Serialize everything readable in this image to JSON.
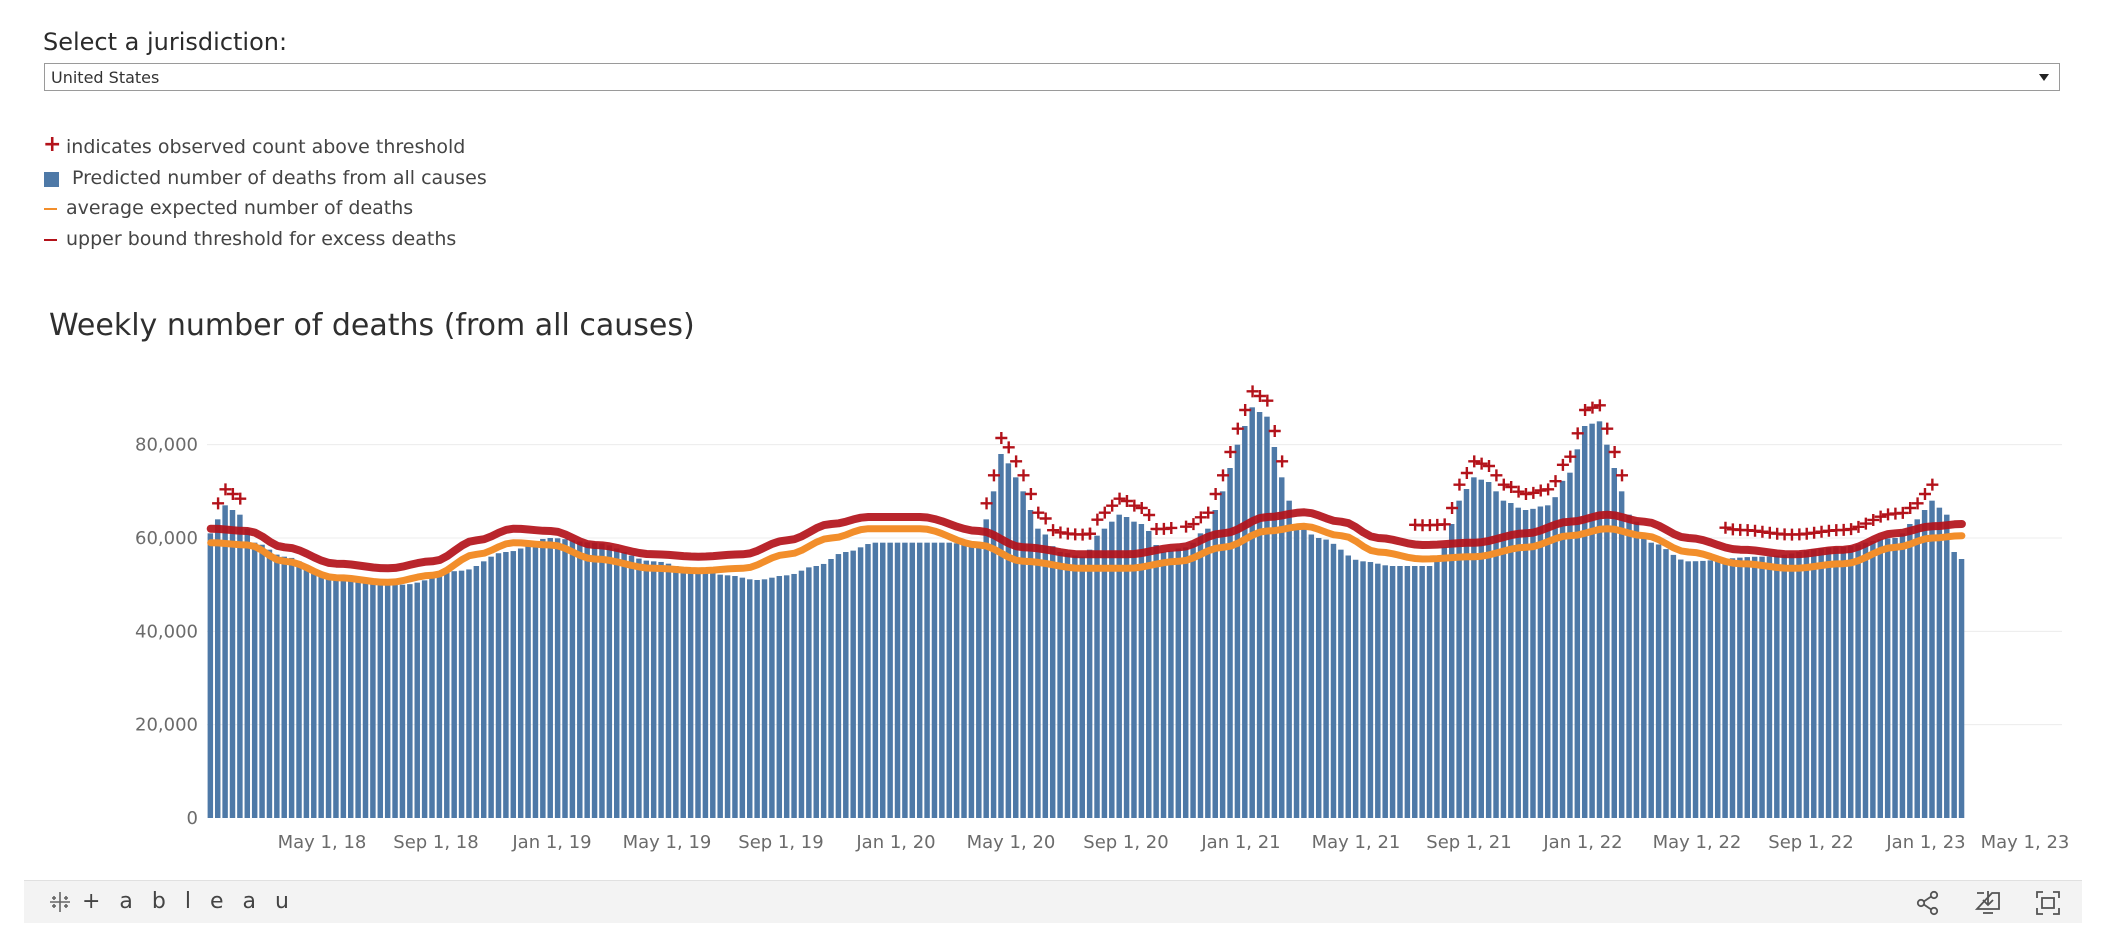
{
  "selector": {
    "label": "Select a jurisdiction:",
    "value": "United States"
  },
  "legend": [
    {
      "symbol": "plus",
      "color": "#b3121a",
      "text": "indicates observed count above threshold"
    },
    {
      "symbol": "square",
      "color": "#4e79a7",
      "text": "Predicted number of deaths from all causes"
    },
    {
      "symbol": "line",
      "color": "#f28e2b",
      "text": "average expected number of deaths"
    },
    {
      "symbol": "line",
      "color": "#b3121a",
      "text": "upper bound threshold for excess deaths"
    }
  ],
  "footer": {
    "brand": "+ a b l e a u",
    "icons": [
      "share-icon",
      "download-icon",
      "fullscreen-icon"
    ]
  },
  "chart_data": {
    "type": "bar",
    "title": "Weekly number of deaths (from all causes)",
    "x_tick_labels": [
      "May 1, 18",
      "Sep 1, 18",
      "Jan 1, 19",
      "May 1, 19",
      "Sep 1, 19",
      "Jan 1, 20",
      "May 1, 20",
      "Sep 1, 20",
      "Jan 1, 21",
      "May 1, 21",
      "Sep 1, 21",
      "Jan 1, 22",
      "May 1, 22",
      "Sep 1, 22",
      "Jan 1, 23",
      "May 1, 23"
    ],
    "ylim": [
      0,
      90000
    ],
    "y_ticks": [
      0,
      20000,
      40000,
      60000,
      80000
    ],
    "y_tick_labels": [
      "0",
      "20,000",
      "40,000",
      "60,000",
      "80,000"
    ],
    "grid": "horizontal",
    "colors": {
      "bars": "#4e79a7",
      "expected": "#f28e2b",
      "threshold": "#b3121a",
      "marker": "#b3121a"
    },
    "series": [
      {
        "key": "predicted",
        "anchors": [
          [
            0,
            61000
          ],
          [
            2,
            67000
          ],
          [
            4,
            65000
          ],
          [
            6,
            59000
          ],
          [
            10,
            56000
          ],
          [
            16,
            52000
          ],
          [
            20,
            51000
          ],
          [
            26,
            50000
          ],
          [
            34,
            53000
          ],
          [
            40,
            57000
          ],
          [
            46,
            60000
          ],
          [
            52,
            59000
          ],
          [
            60,
            55000
          ],
          [
            66,
            53000
          ],
          [
            70,
            52000
          ],
          [
            74,
            51000
          ],
          [
            78,
            52000
          ],
          [
            82,
            54000
          ],
          [
            86,
            57000
          ],
          [
            90,
            59000
          ],
          [
            96,
            59000
          ],
          [
            100,
            59000
          ],
          [
            104,
            58000
          ],
          [
            106,
            70000
          ],
          [
            107,
            78000
          ],
          [
            108,
            76000
          ],
          [
            110,
            70000
          ],
          [
            112,
            62000
          ],
          [
            115,
            57000
          ],
          [
            118,
            56000
          ],
          [
            121,
            62000
          ],
          [
            123,
            65000
          ],
          [
            126,
            63000
          ],
          [
            129,
            57000
          ],
          [
            132,
            58000
          ],
          [
            135,
            62000
          ],
          [
            137,
            70000
          ],
          [
            139,
            80000
          ],
          [
            141,
            88000
          ],
          [
            143,
            86000
          ],
          [
            145,
            73000
          ],
          [
            147,
            63000
          ],
          [
            150,
            60000
          ],
          [
            156,
            55000
          ],
          [
            160,
            54000
          ],
          [
            165,
            54000
          ],
          [
            167,
            58000
          ],
          [
            169,
            68000
          ],
          [
            171,
            73000
          ],
          [
            173,
            72000
          ],
          [
            175,
            68000
          ],
          [
            178,
            66000
          ],
          [
            181,
            67000
          ],
          [
            184,
            74000
          ],
          [
            186,
            84000
          ],
          [
            188,
            85000
          ],
          [
            190,
            75000
          ],
          [
            192,
            65000
          ],
          [
            195,
            59000
          ],
          [
            200,
            55000
          ],
          [
            210,
            56000
          ],
          [
            220,
            58000
          ],
          [
            228,
            60000
          ],
          [
            231,
            64000
          ],
          [
            233,
            68000
          ],
          [
            235,
            65000
          ],
          [
            236,
            57000
          ],
          [
            238,
            54000
          ]
        ]
      },
      {
        "key": "expected",
        "anchors": [
          [
            0,
            59000
          ],
          [
            5,
            58500
          ],
          [
            10,
            55000
          ],
          [
            17,
            51500
          ],
          [
            24,
            50500
          ],
          [
            30,
            52000
          ],
          [
            36,
            56500
          ],
          [
            41,
            59000
          ],
          [
            46,
            58500
          ],
          [
            52,
            55500
          ],
          [
            60,
            53500
          ],
          [
            66,
            53000
          ],
          [
            72,
            53500
          ],
          [
            78,
            56500
          ],
          [
            84,
            60000
          ],
          [
            89,
            62000
          ],
          [
            96,
            62000
          ],
          [
            104,
            58500
          ],
          [
            110,
            55000
          ],
          [
            118,
            53500
          ],
          [
            124,
            53500
          ],
          [
            131,
            55000
          ],
          [
            137,
            58000
          ],
          [
            143,
            61500
          ],
          [
            148,
            62500
          ],
          [
            153,
            60500
          ],
          [
            158,
            57000
          ],
          [
            164,
            55500
          ],
          [
            171,
            56000
          ],
          [
            178,
            58000
          ],
          [
            184,
            60500
          ],
          [
            189,
            62000
          ],
          [
            194,
            60500
          ],
          [
            200,
            57000
          ],
          [
            207,
            54500
          ],
          [
            214,
            53500
          ],
          [
            221,
            54500
          ],
          [
            228,
            58000
          ],
          [
            233,
            60000
          ],
          [
            237,
            60500
          ]
        ]
      },
      {
        "key": "threshold",
        "anchors": [
          [
            0,
            62000
          ],
          [
            5,
            61500
          ],
          [
            10,
            58000
          ],
          [
            17,
            54500
          ],
          [
            24,
            53500
          ],
          [
            30,
            55000
          ],
          [
            36,
            59500
          ],
          [
            41,
            62000
          ],
          [
            46,
            61500
          ],
          [
            52,
            58500
          ],
          [
            60,
            56500
          ],
          [
            66,
            56000
          ],
          [
            72,
            56500
          ],
          [
            78,
            59500
          ],
          [
            84,
            63000
          ],
          [
            89,
            64500
          ],
          [
            96,
            64500
          ],
          [
            104,
            61500
          ],
          [
            110,
            58000
          ],
          [
            118,
            56500
          ],
          [
            124,
            56500
          ],
          [
            131,
            58000
          ],
          [
            137,
            61000
          ],
          [
            143,
            64500
          ],
          [
            148,
            65500
          ],
          [
            153,
            63500
          ],
          [
            158,
            60000
          ],
          [
            164,
            58500
          ],
          [
            171,
            59000
          ],
          [
            178,
            61000
          ],
          [
            184,
            63500
          ],
          [
            189,
            65000
          ],
          [
            194,
            63500
          ],
          [
            200,
            60000
          ],
          [
            207,
            57500
          ],
          [
            214,
            56500
          ],
          [
            221,
            57500
          ],
          [
            228,
            61000
          ],
          [
            233,
            62500
          ],
          [
            237,
            63000
          ]
        ]
      },
      {
        "key": "above_threshold_markers",
        "ranges": [
          [
            1,
            4
          ],
          [
            105,
            119
          ],
          [
            119,
            130
          ],
          [
            132,
            145
          ],
          [
            163,
            191
          ],
          [
            205,
            233
          ]
        ]
      }
    ]
  }
}
